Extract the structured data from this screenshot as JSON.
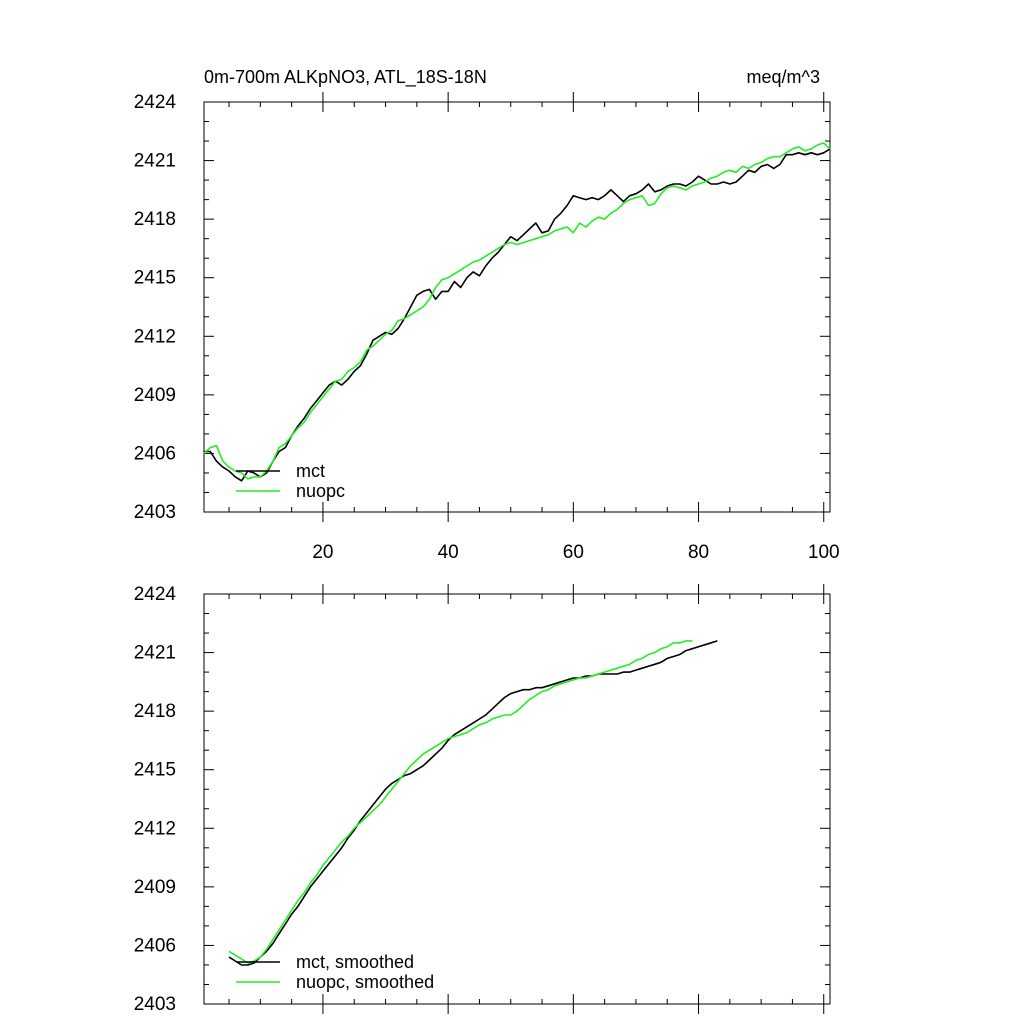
{
  "chart_data": [
    {
      "type": "line",
      "title": "0m-700m ALKpNO3, ATL_18S-18N",
      "units": "meq/m^3",
      "xlim": [
        1,
        101
      ],
      "ylim": [
        2403,
        2424
      ],
      "xticks": [
        20,
        40,
        60,
        80,
        100
      ],
      "yticks": [
        2403,
        2406,
        2409,
        2412,
        2415,
        2418,
        2421,
        2424
      ],
      "legend": "bottom-left",
      "series": [
        {
          "name": "mct",
          "color": "#000000",
          "x_start": 1,
          "values": [
            2406.1,
            2406.1,
            2405.6,
            2405.3,
            2405.1,
            2404.8,
            2404.6,
            2405.1,
            2405.0,
            2404.8,
            2405.0,
            2405.6,
            2406.1,
            2406.3,
            2406.9,
            2407.4,
            2407.8,
            2408.3,
            2408.7,
            2409.1,
            2409.5,
            2409.7,
            2409.5,
            2409.8,
            2410.2,
            2410.5,
            2411.1,
            2411.8,
            2412.0,
            2412.2,
            2412.1,
            2412.4,
            2412.9,
            2413.5,
            2414.1,
            2414.3,
            2414.4,
            2413.9,
            2414.3,
            2414.3,
            2414.8,
            2414.5,
            2415.0,
            2415.3,
            2415.1,
            2415.6,
            2416.0,
            2416.3,
            2416.7,
            2417.1,
            2416.9,
            2417.2,
            2417.5,
            2417.8,
            2417.3,
            2417.4,
            2418.0,
            2418.3,
            2418.7,
            2419.2,
            2419.1,
            2419.0,
            2419.1,
            2419.0,
            2419.2,
            2419.5,
            2419.2,
            2418.9,
            2419.2,
            2419.3,
            2419.5,
            2419.8,
            2419.4,
            2419.5,
            2419.7,
            2419.8,
            2419.8,
            2419.7,
            2419.9,
            2420.2,
            2420.0,
            2419.8,
            2419.8,
            2419.9,
            2419.8,
            2419.9,
            2420.2,
            2420.5,
            2420.4,
            2420.7,
            2420.8,
            2420.6,
            2420.8,
            2421.3,
            2421.3,
            2421.4,
            2421.3,
            2421.4,
            2421.3,
            2421.4,
            2421.6
          ]
        },
        {
          "name": "nuopc",
          "color": "#22ee22",
          "x_start": 1,
          "values": [
            2406.0,
            2406.3,
            2406.4,
            2405.6,
            2405.3,
            2405.1,
            2405.0,
            2404.7,
            2404.8,
            2404.8,
            2405.1,
            2405.6,
            2406.3,
            2406.5,
            2406.9,
            2407.3,
            2407.6,
            2408.1,
            2408.5,
            2408.9,
            2409.3,
            2409.7,
            2409.8,
            2410.2,
            2410.4,
            2410.7,
            2411.3,
            2411.5,
            2411.8,
            2412.1,
            2412.3,
            2412.8,
            2412.9,
            2413.1,
            2413.3,
            2413.5,
            2413.9,
            2414.5,
            2414.9,
            2415.0,
            2415.2,
            2415.4,
            2415.6,
            2415.8,
            2415.9,
            2416.1,
            2416.3,
            2416.5,
            2416.7,
            2416.8,
            2416.7,
            2416.8,
            2416.9,
            2417.0,
            2417.1,
            2417.2,
            2417.4,
            2417.5,
            2417.6,
            2417.3,
            2417.8,
            2417.6,
            2417.9,
            2418.1,
            2418.0,
            2418.3,
            2418.5,
            2418.8,
            2419.0,
            2419.1,
            2419.2,
            2418.7,
            2418.8,
            2419.3,
            2419.6,
            2419.7,
            2419.6,
            2419.5,
            2419.7,
            2419.8,
            2419.9,
            2420.1,
            2420.2,
            2420.4,
            2420.5,
            2420.4,
            2420.7,
            2420.6,
            2420.8,
            2420.9,
            2421.1,
            2421.2,
            2421.2,
            2421.4,
            2421.6,
            2421.7,
            2421.5,
            2421.6,
            2421.8,
            2421.9,
            2421.6
          ]
        }
      ]
    },
    {
      "type": "line",
      "xlim": [
        1,
        101
      ],
      "ylim": [
        2403,
        2424
      ],
      "yticks": [
        2403,
        2406,
        2409,
        2412,
        2415,
        2418,
        2421,
        2424
      ],
      "legend": "bottom-left",
      "series": [
        {
          "name": "mct, smoothed",
          "color": "#000000",
          "x_start": 5,
          "values": [
            2405.4,
            2405.2,
            2405.0,
            2405.0,
            2405.1,
            2405.4,
            2405.7,
            2406.1,
            2406.6,
            2407.1,
            2407.6,
            2408.0,
            2408.5,
            2409.0,
            2409.4,
            2409.8,
            2410.2,
            2410.6,
            2411.0,
            2411.5,
            2411.9,
            2412.4,
            2412.8,
            2413.2,
            2413.6,
            2414.0,
            2414.3,
            2414.5,
            2414.7,
            2414.8,
            2415.0,
            2415.2,
            2415.5,
            2415.8,
            2416.1,
            2416.5,
            2416.8,
            2417.0,
            2417.2,
            2417.4,
            2417.6,
            2417.8,
            2418.1,
            2418.4,
            2418.7,
            2418.9,
            2419.0,
            2419.1,
            2419.1,
            2419.2,
            2419.2,
            2419.3,
            2419.4,
            2419.5,
            2419.6,
            2419.7,
            2419.7,
            2419.8,
            2419.8,
            2419.9,
            2419.9,
            2419.9,
            2419.9,
            2420.0,
            2420.0,
            2420.1,
            2420.2,
            2420.3,
            2420.4,
            2420.5,
            2420.7,
            2420.8,
            2420.9,
            2421.1,
            2421.2,
            2421.3,
            2421.4,
            2421.5,
            2421.6
          ]
        },
        {
          "name": "nuopc, smoothed",
          "color": "#22ee22",
          "x_start": 5,
          "values": [
            2405.7,
            2405.5,
            2405.3,
            2405.1,
            2405.2,
            2405.4,
            2405.8,
            2406.3,
            2406.8,
            2407.3,
            2407.8,
            2408.3,
            2408.7,
            2409.2,
            2409.6,
            2410.1,
            2410.5,
            2410.9,
            2411.3,
            2411.6,
            2412.0,
            2412.3,
            2412.6,
            2412.9,
            2413.2,
            2413.6,
            2414.0,
            2414.4,
            2414.8,
            2415.2,
            2415.5,
            2415.8,
            2416.0,
            2416.2,
            2416.4,
            2416.6,
            2416.7,
            2416.8,
            2416.9,
            2417.1,
            2417.3,
            2417.4,
            2417.6,
            2417.7,
            2417.8,
            2417.8,
            2418.0,
            2418.3,
            2418.6,
            2418.8,
            2419.0,
            2419.1,
            2419.3,
            2419.4,
            2419.5,
            2419.6,
            2419.7,
            2419.7,
            2419.8,
            2419.9,
            2420.0,
            2420.1,
            2420.2,
            2420.3,
            2420.4,
            2420.6,
            2420.7,
            2420.9,
            2421.0,
            2421.2,
            2421.3,
            2421.5,
            2421.5,
            2421.6,
            2421.6
          ]
        }
      ]
    }
  ]
}
